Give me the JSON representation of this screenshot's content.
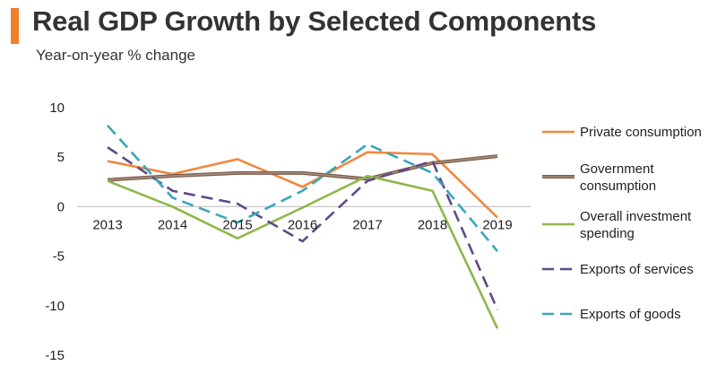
{
  "header": {
    "title": "Real GDP Growth by Selected Components",
    "subtitle": "Year-on-year % change",
    "accent_color": "#f07f2a"
  },
  "chart_data": {
    "type": "line",
    "title": "Real GDP Growth by Selected Components",
    "subtitle": "Year-on-year % change",
    "xlabel": "",
    "ylabel": "",
    "categories": [
      "2013",
      "2014",
      "2015",
      "2016",
      "2017",
      "2018",
      "2019"
    ],
    "ylim": [
      -15,
      10
    ],
    "yticks": [
      10,
      5,
      0,
      -5,
      -10,
      -15
    ],
    "ytick_labels": [
      "10",
      "5",
      "0",
      "-5",
      "-10",
      "-15"
    ],
    "grid": false,
    "legend_position": "right",
    "series": [
      {
        "name": "Private consumption",
        "color": "#f0883e",
        "dash": "solid",
        "values": [
          4.6,
          3.3,
          4.8,
          2.0,
          5.5,
          5.3,
          -1.1
        ]
      },
      {
        "name": "Government consumption",
        "color": "#a88f7c",
        "dash": "solid",
        "outline": "#7a5c4a",
        "values": [
          2.7,
          3.1,
          3.4,
          3.4,
          2.8,
          4.4,
          5.1
        ]
      },
      {
        "name": "Overall investment spending",
        "color": "#8db849",
        "dash": "solid",
        "values": [
          2.6,
          0.0,
          -3.2,
          -0.1,
          3.1,
          1.6,
          -12.3
        ]
      },
      {
        "name": "Exports of services",
        "color": "#5d4a8a",
        "dash": "dashed",
        "values": [
          6.0,
          1.6,
          0.3,
          -3.5,
          2.6,
          4.6,
          -10.4
        ]
      },
      {
        "name": "Exports of goods",
        "color": "#3aa6b9",
        "dash": "dashed",
        "values": [
          8.2,
          0.9,
          -1.6,
          1.6,
          6.3,
          3.4,
          -4.5
        ]
      }
    ]
  }
}
